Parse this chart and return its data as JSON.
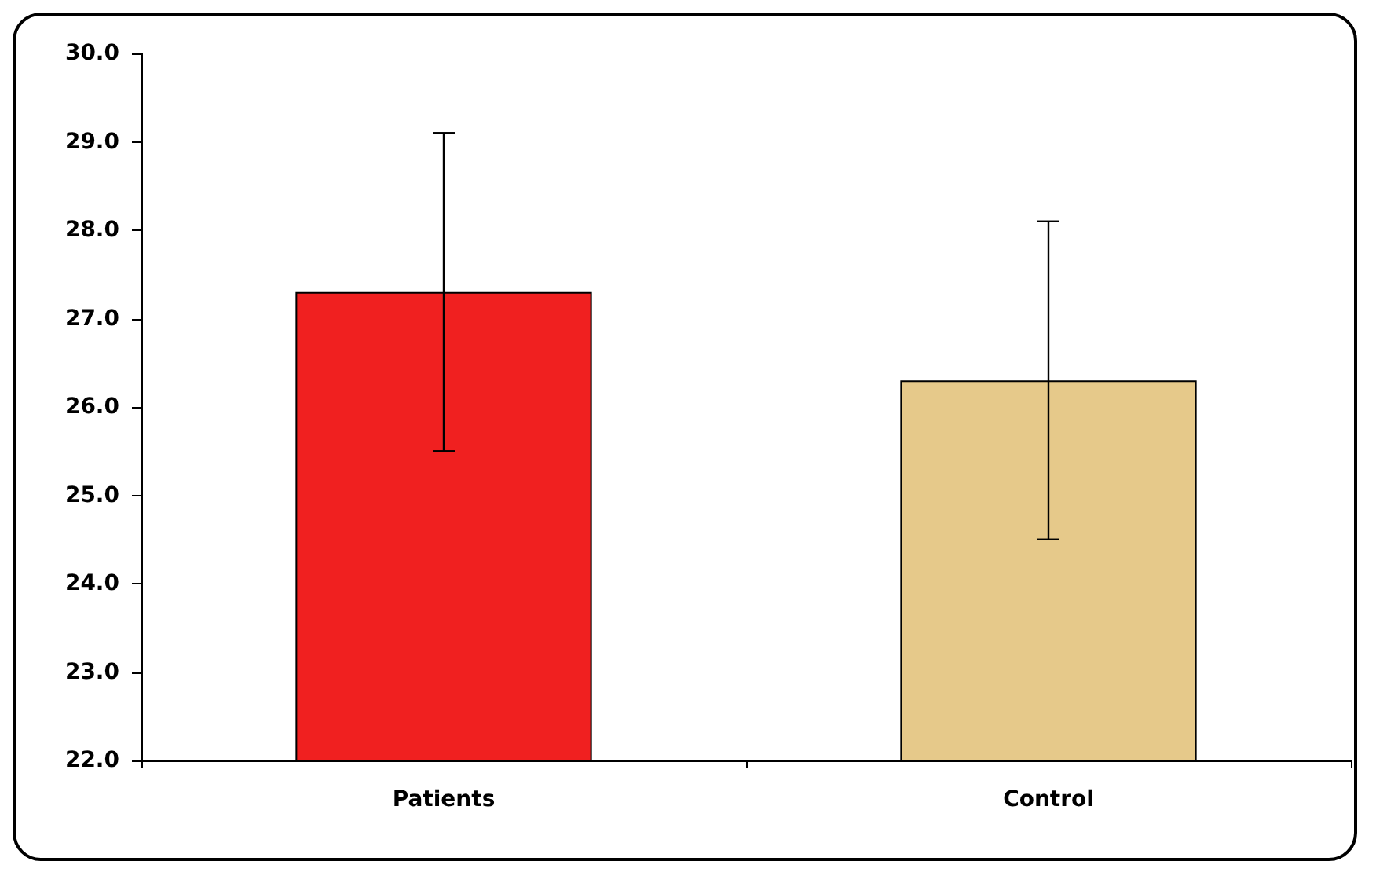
{
  "chart_data": {
    "type": "bar",
    "categories": [
      "Patients",
      "Control"
    ],
    "values": [
      27.3,
      26.3
    ],
    "errors": [
      1.8,
      1.8
    ],
    "colors": [
      "#f02020",
      "#e6c98a"
    ],
    "ylim": [
      22,
      30
    ],
    "yticks": [
      {
        "value": 22,
        "label": "22.0"
      },
      {
        "value": 23,
        "label": "23.0"
      },
      {
        "value": 24,
        "label": "24.0"
      },
      {
        "value": 25,
        "label": "25.0"
      },
      {
        "value": 26,
        "label": "26.0"
      },
      {
        "value": 27,
        "label": "27.0"
      },
      {
        "value": 28,
        "label": "28.0"
      },
      {
        "value": 29,
        "label": "29.0"
      },
      {
        "value": 30,
        "label": "30.0"
      }
    ],
    "grid": false
  }
}
